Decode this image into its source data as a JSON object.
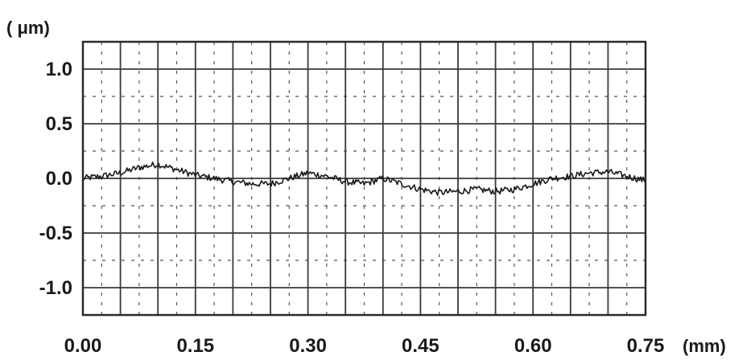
{
  "chart_data": {
    "type": "line",
    "title": "",
    "xlabel": "(mm)",
    "ylabel": "( μm)",
    "xlim": [
      0.0,
      0.75
    ],
    "ylim": [
      -1.25,
      1.25
    ],
    "x_ticks": [
      0.0,
      0.15,
      0.3,
      0.45,
      0.6,
      0.75
    ],
    "x_tick_labels": [
      "0.00",
      "0.15",
      "0.30",
      "0.45",
      "0.60",
      "0.75"
    ],
    "y_ticks": [
      1.0,
      0.5,
      0.0,
      -0.5,
      -1.0
    ],
    "y_tick_labels": [
      "1.0",
      "0.5",
      "0.0",
      "-0.5",
      "-1.0"
    ],
    "grid": true,
    "series": [
      {
        "color": "#1a1a1a",
        "x": [
          0.0,
          0.025,
          0.05,
          0.075,
          0.1,
          0.125,
          0.15,
          0.175,
          0.2,
          0.225,
          0.25,
          0.275,
          0.3,
          0.325,
          0.35,
          0.375,
          0.4,
          0.425,
          0.45,
          0.475,
          0.5,
          0.525,
          0.55,
          0.575,
          0.6,
          0.625,
          0.65,
          0.675,
          0.7,
          0.725,
          0.75
        ],
        "y": [
          0.0,
          0.02,
          0.05,
          0.1,
          0.13,
          0.08,
          0.03,
          0.0,
          -0.03,
          -0.05,
          -0.05,
          0.0,
          0.05,
          0.02,
          -0.03,
          -0.05,
          0.0,
          -0.05,
          -0.1,
          -0.13,
          -0.12,
          -0.1,
          -0.12,
          -0.1,
          -0.05,
          0.0,
          0.02,
          0.05,
          0.06,
          0.02,
          -0.02
        ]
      }
    ]
  }
}
